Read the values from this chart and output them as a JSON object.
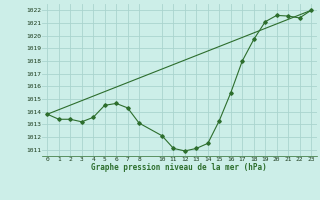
{
  "xlabel": "Graphe pression niveau de la mer (hPa)",
  "bg_color": "#cceee8",
  "grid_color": "#aad4ce",
  "line_color": "#2d6e2d",
  "xlim": [
    -0.5,
    23.5
  ],
  "ylim": [
    1010.5,
    1022.5
  ],
  "yticks": [
    1011,
    1012,
    1013,
    1014,
    1015,
    1016,
    1017,
    1018,
    1019,
    1020,
    1021,
    1022
  ],
  "xticks": [
    0,
    1,
    2,
    3,
    4,
    5,
    6,
    7,
    8,
    10,
    11,
    12,
    13,
    14,
    15,
    16,
    17,
    18,
    19,
    20,
    21,
    22,
    23
  ],
  "xtick_labels": [
    "0",
    "1",
    "2",
    "3",
    "4",
    "5",
    "6",
    "7",
    "8",
    "10",
    "11",
    "12",
    "13",
    "14",
    "15",
    "16",
    "17",
    "18",
    "19",
    "20",
    "21",
    "22",
    "23"
  ],
  "line1_x": [
    0,
    1,
    2,
    3,
    4,
    5,
    6,
    7,
    8,
    10,
    11,
    12,
    13,
    14,
    15,
    16,
    17,
    18,
    19,
    20,
    21,
    22,
    23
  ],
  "line1_y": [
    1013.8,
    1013.4,
    1013.4,
    1013.2,
    1013.55,
    1014.5,
    1014.65,
    1014.3,
    1013.1,
    1012.1,
    1011.1,
    1010.9,
    1011.1,
    1011.5,
    1013.3,
    1015.5,
    1018.0,
    1019.7,
    1021.1,
    1021.6,
    1021.55,
    1021.4,
    1022.0
  ],
  "line2_x": [
    0,
    23
  ],
  "line2_y": [
    1013.8,
    1022.0
  ]
}
